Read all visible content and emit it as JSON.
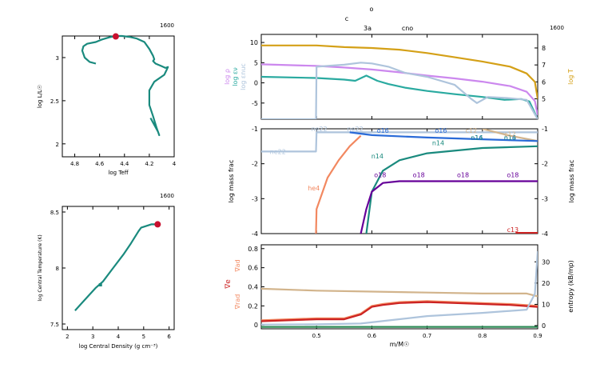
{
  "header": {
    "top1": "o",
    "top2": "c",
    "burn1": "3a",
    "burn2": "cno"
  },
  "chart_data": [
    {
      "id": "hr",
      "type": "line",
      "xlabel": "log Teff",
      "ylabel": "log L/L☉",
      "model": "1600",
      "xlim": [
        4.9,
        4.0
      ],
      "ylim": [
        1.85,
        3.25
      ],
      "xticks": [
        4.8,
        4.6,
        4.4,
        4.2,
        4
      ],
      "yticks": [
        2,
        2.5,
        3,
        3.5
      ],
      "series": [
        {
          "color": "#1a8a7e",
          "x": [
            4.63,
            4.68,
            4.72,
            4.74,
            4.73,
            4.7,
            4.63,
            4.58,
            4.52,
            4.47,
            4.42,
            4.36,
            4.3,
            4.24,
            4.2,
            4.17,
            4.16,
            4.17,
            4.15,
            4.1,
            4.07,
            4.05,
            4.06,
            4.08,
            4.16,
            4.2,
            4.2,
            4.17,
            4.14,
            4.12,
            4.13,
            4.19
          ],
          "y": [
            2.93,
            2.95,
            3.0,
            3.08,
            3.13,
            3.16,
            3.18,
            3.21,
            3.235,
            3.25,
            3.25,
            3.24,
            3.22,
            3.18,
            3.1,
            3.02,
            2.98,
            2.96,
            2.93,
            2.9,
            2.88,
            2.89,
            2.86,
            2.8,
            2.72,
            2.62,
            2.45,
            2.32,
            2.18,
            2.1,
            2.14,
            2.3
          ]
        }
      ],
      "marker": {
        "x": 4.47,
        "y": 3.245,
        "color": "#c8102e"
      }
    },
    {
      "id": "rhoT",
      "type": "line",
      "xlabel": "log Central Density (g cm⁻³)",
      "ylabel": "log Central Temperature (K)",
      "model": "1600",
      "xlim": [
        1.8,
        6.2
      ],
      "ylim": [
        7.45,
        8.55
      ],
      "xticks": [
        2,
        3,
        4,
        5,
        6
      ],
      "yticks": [
        7.5,
        8,
        8.5
      ],
      "series": [
        {
          "color": "#1a8a7e",
          "x": [
            2.3,
            2.7,
            3.1,
            3.4,
            3.8,
            4.2,
            4.5,
            4.8,
            4.9,
            5.3,
            5.5
          ],
          "y": [
            7.62,
            7.72,
            7.82,
            7.88,
            8.0,
            8.12,
            8.22,
            8.33,
            8.36,
            8.39,
            8.39
          ]
        }
      ],
      "marker": {
        "x": 5.55,
        "y": 8.39,
        "color": "#c8102e"
      }
    },
    {
      "id": "profile",
      "type": "line",
      "model": "1600",
      "xlim": [
        0.4,
        0.9
      ],
      "xticks": [
        0.5,
        0.6,
        0.7,
        0.8,
        0.9
      ],
      "xlabel": "m/M☉",
      "ylim": [
        -9,
        12
      ],
      "yticks": [
        -5,
        0,
        5,
        10
      ],
      "y2lim": [
        3.8,
        8.8
      ],
      "y2ticks": [
        5,
        6,
        7,
        8
      ],
      "labels": {
        "left1": "log ρ",
        "left2": "log εν",
        "left3": "log εnuc",
        "right": "log T"
      },
      "series": [
        {
          "name": "log T",
          "axis": "right",
          "color": "#d4a017",
          "x": [
            0.4,
            0.5,
            0.55,
            0.6,
            0.65,
            0.7,
            0.75,
            0.8,
            0.85,
            0.88,
            0.895,
            0.9
          ],
          "y": [
            8.15,
            8.15,
            8.05,
            8.0,
            7.9,
            7.7,
            7.45,
            7.2,
            6.9,
            6.5,
            6.0,
            5.0
          ]
        },
        {
          "name": "log ρ",
          "axis": "left",
          "color": "#cc88ee",
          "x": [
            0.4,
            0.5,
            0.55,
            0.6,
            0.65,
            0.7,
            0.75,
            0.8,
            0.85,
            0.88,
            0.895,
            0.9
          ],
          "y": [
            4.6,
            4.2,
            3.8,
            3.3,
            2.6,
            1.8,
            1.1,
            0.3,
            -0.8,
            -2.2,
            -4.5,
            -8.0
          ]
        },
        {
          "name": "log εν",
          "axis": "left",
          "color": "#2aaaa0",
          "x": [
            0.4,
            0.5,
            0.55,
            0.57,
            0.59,
            0.61,
            0.63,
            0.66,
            0.7,
            0.75,
            0.8,
            0.84,
            0.87,
            0.885,
            0.9
          ],
          "y": [
            1.5,
            1.2,
            0.8,
            0.5,
            1.8,
            0.5,
            -0.3,
            -1.2,
            -2.0,
            -2.8,
            -3.5,
            -4.2,
            -4.0,
            -4.6,
            -9.0
          ]
        },
        {
          "name": "log εnuc",
          "axis": "left",
          "color": "#aec4dc",
          "x": [
            0.4,
            0.499,
            0.5,
            0.55,
            0.58,
            0.6,
            0.63,
            0.66,
            0.7,
            0.75,
            0.78,
            0.79,
            0.81,
            0.85,
            0.88,
            0.9
          ],
          "y": [
            -9.0,
            -9.0,
            4.0,
            4.5,
            5.0,
            4.8,
            4.0,
            2.5,
            1.5,
            -0.5,
            -4.0,
            -5.0,
            -3.5,
            -3.8,
            -4.2,
            -9.0
          ]
        }
      ]
    },
    {
      "id": "abundance",
      "type": "line",
      "xlim": [
        0.4,
        0.9
      ],
      "ylim": [
        -4,
        -1
      ],
      "yticks": [
        -4,
        -3,
        -2,
        -1
      ],
      "ylabel": "log mass frac",
      "y2label": "log mass frac",
      "series": [
        {
          "name": "ne22",
          "color": "#aec4dc",
          "x": [
            0.4,
            0.499,
            0.5,
            0.6,
            0.7,
            0.8,
            0.9
          ],
          "y": [
            -1.65,
            -1.65,
            -1.1,
            -1.1,
            -1.1,
            -1.1,
            -1.1
          ]
        },
        {
          "name": "he4",
          "color": "#f28860",
          "x": [
            0.499,
            0.5,
            0.52,
            0.54,
            0.56,
            0.58
          ],
          "y": [
            -4.0,
            -3.3,
            -2.4,
            -1.9,
            -1.5,
            -1.2
          ]
        },
        {
          "name": "c12",
          "color": "#d2b48c",
          "x": [
            0.8,
            0.85,
            0.9
          ],
          "y": [
            -1.0,
            -1.2,
            -1.35
          ]
        },
        {
          "name": "o16",
          "color": "#2a6bd8",
          "x": [
            0.56,
            0.6,
            0.7,
            0.8,
            0.9
          ],
          "y": [
            -1.1,
            -1.18,
            -1.25,
            -1.3,
            -1.35
          ]
        },
        {
          "name": "n14",
          "color": "#1a8a7e",
          "x": [
            0.59,
            0.6,
            0.62,
            0.65,
            0.7,
            0.8,
            0.9
          ],
          "y": [
            -4.0,
            -2.8,
            -2.2,
            -1.9,
            -1.7,
            -1.55,
            -1.5
          ]
        },
        {
          "name": "o18",
          "color": "#660099",
          "x": [
            0.58,
            0.59,
            0.6,
            0.62,
            0.65,
            0.7,
            0.8,
            0.9
          ],
          "y": [
            -4.0,
            -3.3,
            -2.8,
            -2.55,
            -2.5,
            -2.5,
            -2.5,
            -2.5
          ]
        },
        {
          "name": "c13",
          "color": "#cc2222",
          "x": [
            0.86,
            0.9
          ],
          "y": [
            -3.98,
            -3.98
          ]
        }
      ],
      "annotations": [
        {
          "text": "ne22",
          "x": 0.43,
          "y": -1.65,
          "color": "#aec4dc"
        },
        {
          "text": "ne22",
          "x": 0.505,
          "y": -1.0,
          "color": "#aec4dc"
        },
        {
          "text": "ne22",
          "x": 0.57,
          "y": -1.0,
          "color": "#aec4dc"
        },
        {
          "text": "he4",
          "x": 0.495,
          "y": -2.7,
          "color": "#f28860"
        },
        {
          "text": "o16",
          "x": 0.62,
          "y": -1.05,
          "color": "#2a6bd8"
        },
        {
          "text": "o16",
          "x": 0.725,
          "y": -1.05,
          "color": "#2a6bd8"
        },
        {
          "text": "o16",
          "x": 0.79,
          "y": -1.25,
          "color": "#2a6bd8"
        },
        {
          "text": "o16",
          "x": 0.85,
          "y": -1.25,
          "color": "#2a6bd8"
        },
        {
          "text": "n14",
          "x": 0.61,
          "y": -1.78,
          "color": "#1a8a7e"
        },
        {
          "text": "n14",
          "x": 0.72,
          "y": -1.4,
          "color": "#1a8a7e"
        },
        {
          "text": "n14",
          "x": 0.79,
          "y": -1.25,
          "color": "#1a8a7e"
        },
        {
          "text": "n14",
          "x": 0.85,
          "y": -1.25,
          "color": "#1a8a7e"
        },
        {
          "text": "c12",
          "x": 0.78,
          "y": -1.05,
          "color": "#d2b48c"
        },
        {
          "text": "c12",
          "x": 0.85,
          "y": -1.15,
          "color": "#d2b48c"
        },
        {
          "text": "o18",
          "x": 0.615,
          "y": -2.32,
          "color": "#660099"
        },
        {
          "text": "o18",
          "x": 0.685,
          "y": -2.32,
          "color": "#660099"
        },
        {
          "text": "o18",
          "x": 0.765,
          "y": -2.32,
          "color": "#660099"
        },
        {
          "text": "o18",
          "x": 0.855,
          "y": -2.32,
          "color": "#660099"
        },
        {
          "text": "c13",
          "x": 0.855,
          "y": -3.88,
          "color": "#cc2222"
        }
      ]
    },
    {
      "id": "gradients",
      "type": "line",
      "xlim": [
        0.4,
        0.9
      ],
      "xticks": [
        0.5,
        0.6,
        0.7,
        0.8,
        0.9
      ],
      "xlabel": "m/M☉",
      "ylim": [
        -0.04,
        0.84
      ],
      "yticks": [
        0,
        0.2,
        0.4,
        0.6,
        0.8
      ],
      "y2lim": [
        -1.5,
        38
      ],
      "y2ticks": [
        0,
        10,
        20,
        30
      ],
      "labels": {
        "left1": "∇ad",
        "left2": "∇e",
        "left3": "∇rad",
        "right": "entropy (kB/mp)"
      },
      "series": [
        {
          "name": "∇ad",
          "color": "#d2b48c",
          "x": [
            0.4,
            0.5,
            0.6,
            0.7,
            0.8,
            0.88,
            0.9
          ],
          "y": [
            0.38,
            0.36,
            0.35,
            0.34,
            0.33,
            0.33,
            0.3
          ]
        },
        {
          "name": "∇rad",
          "color": "#f28860",
          "x": [
            0.4,
            0.5,
            0.55,
            0.58,
            0.6,
            0.62,
            0.65,
            0.7,
            0.75,
            0.8,
            0.85,
            0.9
          ],
          "y": [
            0.05,
            0.07,
            0.07,
            0.12,
            0.2,
            0.22,
            0.24,
            0.25,
            0.24,
            0.23,
            0.22,
            0.2
          ]
        },
        {
          "name": "∇e",
          "color": "#cc2222",
          "x": [
            0.4,
            0.5,
            0.55,
            0.58,
            0.6,
            0.62,
            0.65,
            0.7,
            0.75,
            0.8,
            0.85,
            0.9
          ],
          "y": [
            0.04,
            0.06,
            0.06,
            0.11,
            0.19,
            0.21,
            0.23,
            0.24,
            0.23,
            0.22,
            0.21,
            0.19
          ]
        },
        {
          "name": "entropy",
          "axis": "right",
          "color": "#aec4dc",
          "x": [
            0.4,
            0.5,
            0.58,
            0.65,
            0.7,
            0.8,
            0.88,
            0.895,
            0.9
          ],
          "y": [
            0.5,
            0.6,
            1.0,
            3.0,
            4.5,
            6.0,
            7.5,
            15,
            35
          ]
        },
        {
          "name": "baseline",
          "color": "#2e8b57",
          "x": [
            0.4,
            0.9
          ],
          "y": [
            -0.02,
            -0.02
          ]
        }
      ]
    }
  ]
}
